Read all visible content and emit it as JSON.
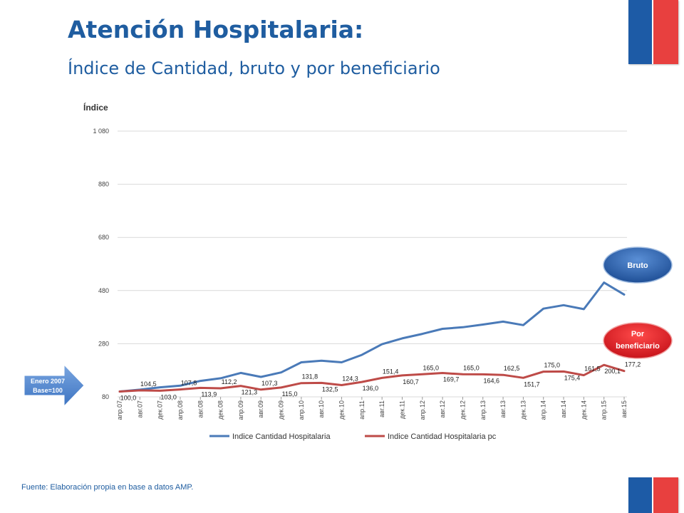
{
  "header": {
    "title": "Atención Hospitalaria:",
    "subtitle": "Índice de Cantidad, bruto y por beneficiario"
  },
  "footer": {
    "source": "Fuente: Elaboración propia en base a datos AMP."
  },
  "annotations": {
    "bruto": "Bruto",
    "por_beneficiario_line1": "Por",
    "por_beneficiario_line2": "beneficiario",
    "base_line1": "Enero 2007",
    "base_line2": "Base=100"
  },
  "colors": {
    "brand_blue": "#1f5da0",
    "series_blue": "#4a7ab8",
    "series_red": "#be4b48",
    "bubble_blue": "#2e67b1",
    "bubble_red": "#e11f26",
    "arrow_blue": "#4f86cf",
    "flag_blue": "#1d5ba6",
    "flag_red": "#e8403f"
  },
  "chart_data": {
    "type": "line",
    "ylabel": "Índice",
    "xlabel": "",
    "ylim": [
      80,
      1080
    ],
    "yticks": [
      "80",
      "280",
      "480",
      "680",
      "880",
      "1 080"
    ],
    "ytick_values": [
      80,
      280,
      480,
      680,
      880,
      1080
    ],
    "grid": true,
    "legend_position": "bottom",
    "categories": [
      "апр.07",
      "авг.07",
      "дек.07",
      "апр.08",
      "авг.08",
      "дек.08",
      "апр.09",
      "авг.09",
      "дек.09",
      "апр.10",
      "авг.10",
      "дек.10",
      "апр.11",
      "авг.11",
      "дек.11",
      "апр.12",
      "авг.12",
      "дек.12",
      "апр.13",
      "авг.13",
      "дек.13",
      "апр.14",
      "авг.14",
      "дек.14",
      "апр.15",
      "авг.15"
    ],
    "series": [
      {
        "name": "Indice Cantidad Hospitalaria",
        "color": "#4a7ab8",
        "values": [
          100,
          107,
          116,
          122,
          140,
          150,
          170,
          155,
          172,
          210,
          216,
          210,
          238,
          278,
          300,
          317,
          336,
          342,
          352,
          363,
          350,
          412,
          425,
          410,
          510,
          465
        ]
      },
      {
        "name": "Indice Cantidad Hospitalaria pc",
        "color": "#be4b48",
        "values": [
          100.0,
          104.5,
          103.0,
          107.8,
          113.9,
          112.2,
          121.3,
          107.3,
          115.0,
          131.8,
          132.5,
          124.3,
          136.0,
          151.4,
          160.7,
          165.0,
          169.7,
          165.0,
          164.6,
          162.5,
          151.7,
          175.0,
          175.4,
          161.5,
          200.1,
          177.2
        ]
      }
    ],
    "data_labels": [
      "100,0",
      "104,5",
      "103,0",
      "107,8",
      "113,9",
      "112,2",
      "121,3",
      "107,3",
      "115,0",
      "131,8",
      "132,5",
      "124,3",
      "136,0",
      "151,4",
      "160,7",
      "165,0",
      "169,7",
      "165,0",
      "164,6",
      "162,5",
      "151,7",
      "175,0",
      "175,4",
      "161,5",
      "200,1",
      "177,2"
    ]
  }
}
